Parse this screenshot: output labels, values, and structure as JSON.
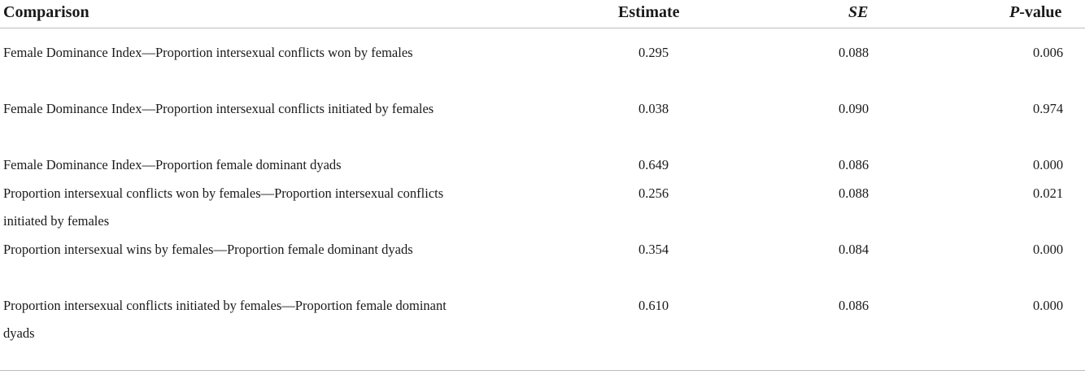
{
  "table": {
    "headers": {
      "comparison": "Comparison",
      "estimate": "Estimate",
      "se": "SE",
      "p_italic": "P",
      "p_rest": "-value"
    },
    "rows": [
      {
        "comparison": "Female Dominance Index—Proportion intersexual conflicts won by females",
        "estimate": "0.295",
        "se": "0.088",
        "p": "0.006"
      },
      {
        "comparison": "Female Dominance Index—Proportion intersexual conflicts initiated by females",
        "estimate": "0.038",
        "se": "0.090",
        "p": "0.974"
      },
      {
        "comparison": "Female Dominance Index—Proportion female dominant dyads",
        "estimate": "0.649",
        "se": "0.086",
        "p": "0.000"
      },
      {
        "comparison": "Proportion intersexual conflicts won by females—Proportion intersexual conflicts initiated by females",
        "estimate": "0.256",
        "se": "0.088",
        "p": "0.021"
      },
      {
        "comparison": "Proportion intersexual wins by females—Proportion female dominant dyads",
        "estimate": "0.354",
        "se": "0.084",
        "p": "0.000"
      },
      {
        "comparison": "Proportion intersexual conflicts initiated by females—Proportion female dominant dyads",
        "estimate": "0.610",
        "se": "0.086",
        "p": "0.000"
      }
    ]
  }
}
